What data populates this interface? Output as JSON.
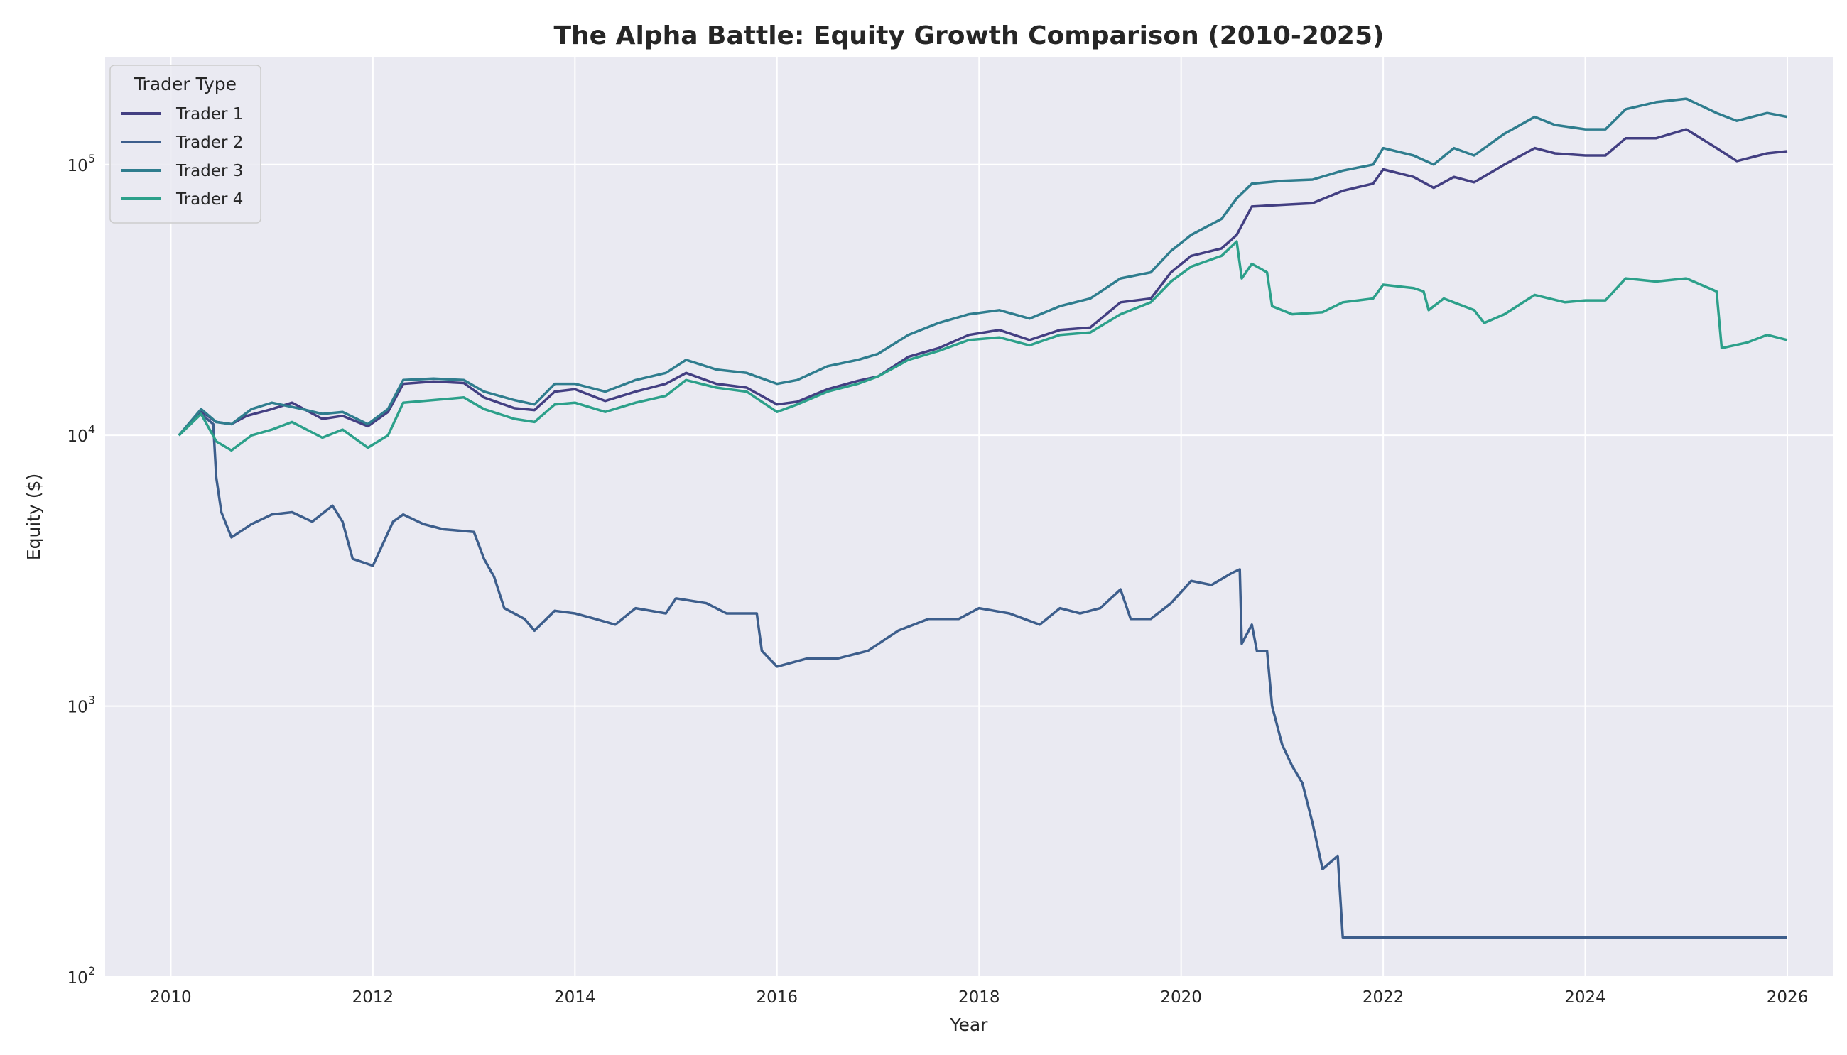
{
  "chart_data": {
    "type": "line",
    "title": "The Alpha Battle: Equity Growth Comparison (2010-2025)",
    "xlabel": "Year",
    "ylabel": "Equity ($)",
    "xlim": [
      2009.35,
      2026.45
    ],
    "ylim": [
      100,
      250000
    ],
    "yscale": "log",
    "x_ticks": [
      2010,
      2012,
      2014,
      2016,
      2018,
      2020,
      2022,
      2024,
      2026
    ],
    "y_ticks": [
      {
        "value": 100,
        "base": "10",
        "exp": "2"
      },
      {
        "value": 1000,
        "base": "10",
        "exp": "3"
      },
      {
        "value": 10000,
        "base": "10",
        "exp": "4"
      },
      {
        "value": 100000,
        "base": "10",
        "exp": "5"
      }
    ],
    "grid": true,
    "background": "#eaeaf2",
    "legend": {
      "title": "Trader Type",
      "placement": "top-left"
    },
    "series": [
      {
        "name": "Trader 1",
        "color": "#433f82",
        "points": [
          [
            2010.08,
            10000
          ],
          [
            2010.3,
            12300
          ],
          [
            2010.45,
            11200
          ],
          [
            2010.6,
            11000
          ],
          [
            2010.75,
            11800
          ],
          [
            2011.0,
            12500
          ],
          [
            2011.2,
            13200
          ],
          [
            2011.5,
            11500
          ],
          [
            2011.7,
            11800
          ],
          [
            2011.95,
            10800
          ],
          [
            2012.15,
            12200
          ],
          [
            2012.3,
            15500
          ],
          [
            2012.6,
            15800
          ],
          [
            2012.9,
            15600
          ],
          [
            2013.1,
            13800
          ],
          [
            2013.4,
            12600
          ],
          [
            2013.6,
            12400
          ],
          [
            2013.8,
            14500
          ],
          [
            2014.0,
            14800
          ],
          [
            2014.3,
            13400
          ],
          [
            2014.6,
            14500
          ],
          [
            2014.9,
            15500
          ],
          [
            2015.1,
            17000
          ],
          [
            2015.4,
            15500
          ],
          [
            2015.7,
            15000
          ],
          [
            2016.0,
            13000
          ],
          [
            2016.2,
            13300
          ],
          [
            2016.5,
            14800
          ],
          [
            2016.8,
            15900
          ],
          [
            2017.0,
            16500
          ],
          [
            2017.3,
            19500
          ],
          [
            2017.6,
            21000
          ],
          [
            2017.9,
            23500
          ],
          [
            2018.2,
            24500
          ],
          [
            2018.5,
            22500
          ],
          [
            2018.8,
            24500
          ],
          [
            2019.1,
            25000
          ],
          [
            2019.4,
            31000
          ],
          [
            2019.7,
            32000
          ],
          [
            2019.9,
            40000
          ],
          [
            2020.1,
            46000
          ],
          [
            2020.4,
            49000
          ],
          [
            2020.55,
            55000
          ],
          [
            2020.7,
            70000
          ],
          [
            2021.0,
            71000
          ],
          [
            2021.3,
            72000
          ],
          [
            2021.6,
            80000
          ],
          [
            2021.9,
            85000
          ],
          [
            2022.0,
            96000
          ],
          [
            2022.3,
            90000
          ],
          [
            2022.5,
            82000
          ],
          [
            2022.7,
            90000
          ],
          [
            2022.9,
            86000
          ],
          [
            2023.2,
            100000
          ],
          [
            2023.5,
            115000
          ],
          [
            2023.7,
            110000
          ],
          [
            2024.0,
            108000
          ],
          [
            2024.2,
            108000
          ],
          [
            2024.4,
            125000
          ],
          [
            2024.7,
            125000
          ],
          [
            2025.0,
            135000
          ],
          [
            2025.3,
            115000
          ],
          [
            2025.5,
            103000
          ],
          [
            2025.8,
            110000
          ],
          [
            2026.0,
            112000
          ]
        ]
      },
      {
        "name": "Trader 2",
        "color": "#3d5e8c",
        "points": [
          [
            2010.08,
            10000
          ],
          [
            2010.3,
            12000
          ],
          [
            2010.42,
            11000
          ],
          [
            2010.45,
            7000
          ],
          [
            2010.5,
            5200
          ],
          [
            2010.6,
            4200
          ],
          [
            2010.8,
            4700
          ],
          [
            2011.0,
            5100
          ],
          [
            2011.2,
            5200
          ],
          [
            2011.4,
            4800
          ],
          [
            2011.6,
            5500
          ],
          [
            2011.7,
            4800
          ],
          [
            2011.8,
            3500
          ],
          [
            2012.0,
            3300
          ],
          [
            2012.2,
            4800
          ],
          [
            2012.3,
            5100
          ],
          [
            2012.5,
            4700
          ],
          [
            2012.7,
            4500
          ],
          [
            2013.0,
            4400
          ],
          [
            2013.1,
            3500
          ],
          [
            2013.2,
            3000
          ],
          [
            2013.3,
            2300
          ],
          [
            2013.5,
            2100
          ],
          [
            2013.6,
            1900
          ],
          [
            2013.8,
            2250
          ],
          [
            2014.0,
            2200
          ],
          [
            2014.2,
            2100
          ],
          [
            2014.4,
            2000
          ],
          [
            2014.6,
            2300
          ],
          [
            2014.9,
            2200
          ],
          [
            2015.0,
            2500
          ],
          [
            2015.3,
            2400
          ],
          [
            2015.5,
            2200
          ],
          [
            2015.8,
            2200
          ],
          [
            2015.85,
            1600
          ],
          [
            2016.0,
            1400
          ],
          [
            2016.3,
            1500
          ],
          [
            2016.6,
            1500
          ],
          [
            2016.9,
            1600
          ],
          [
            2017.2,
            1900
          ],
          [
            2017.5,
            2100
          ],
          [
            2017.8,
            2100
          ],
          [
            2018.0,
            2300
          ],
          [
            2018.3,
            2200
          ],
          [
            2018.6,
            2000
          ],
          [
            2018.8,
            2300
          ],
          [
            2019.0,
            2200
          ],
          [
            2019.2,
            2300
          ],
          [
            2019.4,
            2700
          ],
          [
            2019.5,
            2100
          ],
          [
            2019.7,
            2100
          ],
          [
            2019.9,
            2400
          ],
          [
            2020.1,
            2900
          ],
          [
            2020.3,
            2800
          ],
          [
            2020.5,
            3100
          ],
          [
            2020.58,
            3200
          ],
          [
            2020.6,
            1700
          ],
          [
            2020.7,
            2000
          ],
          [
            2020.75,
            1600
          ],
          [
            2020.85,
            1600
          ],
          [
            2020.9,
            1000
          ],
          [
            2021.0,
            720
          ],
          [
            2021.1,
            600
          ],
          [
            2021.2,
            520
          ],
          [
            2021.3,
            370
          ],
          [
            2021.4,
            250
          ],
          [
            2021.55,
            280
          ],
          [
            2021.6,
            140
          ],
          [
            2022.0,
            140
          ],
          [
            2024.0,
            140
          ],
          [
            2026.0,
            140
          ]
        ]
      },
      {
        "name": "Trader 3",
        "color": "#2f7d8e",
        "points": [
          [
            2010.08,
            10000
          ],
          [
            2010.3,
            12500
          ],
          [
            2010.45,
            11200
          ],
          [
            2010.6,
            11000
          ],
          [
            2010.8,
            12500
          ],
          [
            2011.0,
            13200
          ],
          [
            2011.3,
            12500
          ],
          [
            2011.5,
            12000
          ],
          [
            2011.7,
            12200
          ],
          [
            2011.95,
            11000
          ],
          [
            2012.15,
            12500
          ],
          [
            2012.3,
            16000
          ],
          [
            2012.6,
            16200
          ],
          [
            2012.9,
            16000
          ],
          [
            2013.1,
            14500
          ],
          [
            2013.4,
            13500
          ],
          [
            2013.6,
            13000
          ],
          [
            2013.8,
            15500
          ],
          [
            2014.0,
            15500
          ],
          [
            2014.3,
            14500
          ],
          [
            2014.6,
            16000
          ],
          [
            2014.9,
            17000
          ],
          [
            2015.1,
            19000
          ],
          [
            2015.4,
            17500
          ],
          [
            2015.7,
            17000
          ],
          [
            2016.0,
            15500
          ],
          [
            2016.2,
            16000
          ],
          [
            2016.5,
            18000
          ],
          [
            2016.8,
            19000
          ],
          [
            2017.0,
            20000
          ],
          [
            2017.3,
            23500
          ],
          [
            2017.6,
            26000
          ],
          [
            2017.9,
            28000
          ],
          [
            2018.2,
            29000
          ],
          [
            2018.5,
            27000
          ],
          [
            2018.8,
            30000
          ],
          [
            2019.1,
            32000
          ],
          [
            2019.4,
            38000
          ],
          [
            2019.7,
            40000
          ],
          [
            2019.9,
            48000
          ],
          [
            2020.1,
            55000
          ],
          [
            2020.4,
            63000
          ],
          [
            2020.55,
            75000
          ],
          [
            2020.7,
            85000
          ],
          [
            2021.0,
            87000
          ],
          [
            2021.3,
            88000
          ],
          [
            2021.6,
            95000
          ],
          [
            2021.9,
            100000
          ],
          [
            2022.0,
            115000
          ],
          [
            2022.3,
            108000
          ],
          [
            2022.5,
            100000
          ],
          [
            2022.7,
            115000
          ],
          [
            2022.9,
            108000
          ],
          [
            2023.2,
            130000
          ],
          [
            2023.5,
            150000
          ],
          [
            2023.7,
            140000
          ],
          [
            2024.0,
            135000
          ],
          [
            2024.2,
            135000
          ],
          [
            2024.4,
            160000
          ],
          [
            2024.7,
            170000
          ],
          [
            2025.0,
            175000
          ],
          [
            2025.3,
            155000
          ],
          [
            2025.5,
            145000
          ],
          [
            2025.8,
            155000
          ],
          [
            2026.0,
            150000
          ]
        ]
      },
      {
        "name": "Trader 4",
        "color": "#2ca08a",
        "points": [
          [
            2010.08,
            10000
          ],
          [
            2010.3,
            12000
          ],
          [
            2010.45,
            9500
          ],
          [
            2010.6,
            8800
          ],
          [
            2010.8,
            10000
          ],
          [
            2011.0,
            10500
          ],
          [
            2011.2,
            11200
          ],
          [
            2011.5,
            9800
          ],
          [
            2011.7,
            10500
          ],
          [
            2011.95,
            9000
          ],
          [
            2012.15,
            10000
          ],
          [
            2012.3,
            13200
          ],
          [
            2012.6,
            13500
          ],
          [
            2012.9,
            13800
          ],
          [
            2013.1,
            12500
          ],
          [
            2013.4,
            11500
          ],
          [
            2013.6,
            11200
          ],
          [
            2013.8,
            13000
          ],
          [
            2014.0,
            13200
          ],
          [
            2014.3,
            12200
          ],
          [
            2014.6,
            13200
          ],
          [
            2014.9,
            14000
          ],
          [
            2015.1,
            16000
          ],
          [
            2015.4,
            15000
          ],
          [
            2015.7,
            14500
          ],
          [
            2016.0,
            12200
          ],
          [
            2016.2,
            13000
          ],
          [
            2016.5,
            14500
          ],
          [
            2016.8,
            15500
          ],
          [
            2017.0,
            16500
          ],
          [
            2017.3,
            19000
          ],
          [
            2017.6,
            20500
          ],
          [
            2017.9,
            22500
          ],
          [
            2018.2,
            23000
          ],
          [
            2018.5,
            21500
          ],
          [
            2018.8,
            23500
          ],
          [
            2019.1,
            24000
          ],
          [
            2019.4,
            28000
          ],
          [
            2019.7,
            31000
          ],
          [
            2019.9,
            37000
          ],
          [
            2020.1,
            42000
          ],
          [
            2020.4,
            46000
          ],
          [
            2020.55,
            52000
          ],
          [
            2020.6,
            38000
          ],
          [
            2020.7,
            43000
          ],
          [
            2020.85,
            40000
          ],
          [
            2020.9,
            30000
          ],
          [
            2021.1,
            28000
          ],
          [
            2021.4,
            28500
          ],
          [
            2021.6,
            31000
          ],
          [
            2021.9,
            32000
          ],
          [
            2022.0,
            36000
          ],
          [
            2022.3,
            35000
          ],
          [
            2022.4,
            34000
          ],
          [
            2022.45,
            29000
          ],
          [
            2022.6,
            32000
          ],
          [
            2022.9,
            29000
          ],
          [
            2023.0,
            26000
          ],
          [
            2023.2,
            28000
          ],
          [
            2023.5,
            33000
          ],
          [
            2023.8,
            31000
          ],
          [
            2024.0,
            31500
          ],
          [
            2024.2,
            31500
          ],
          [
            2024.4,
            38000
          ],
          [
            2024.7,
            37000
          ],
          [
            2025.0,
            38000
          ],
          [
            2025.3,
            34000
          ],
          [
            2025.35,
            21000
          ],
          [
            2025.6,
            22000
          ],
          [
            2025.8,
            23500
          ],
          [
            2026.0,
            22500
          ]
        ]
      }
    ]
  }
}
